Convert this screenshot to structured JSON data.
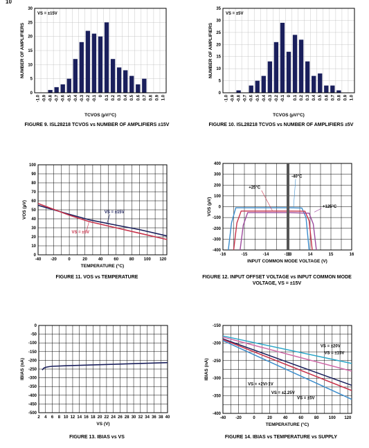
{
  "page_number": "10",
  "captions": {
    "fig9": "FIGURE 9. ISL28218 TCVOS vs NUMBER OF AMPLIFIERS ±15V",
    "fig10": "FIGURE 10. ISL28218 TCVOS vs NUMBER OF AMPLIFIERS ±5V",
    "fig11": "FIGURE 11. VOS vs TEMPERATURE",
    "fig12_line1": "FIGURE 12. INPUT OFFSET VOLTAGE vs INPUT COMMON MODE",
    "fig12_line2": "VOLTAGE, VS = ±15V",
    "fig13": "FIGURE 13. IBIAS vs VS",
    "fig14": "FIGURE 14. IBIAS vs TEMPERATURE vs SUPPLY"
  },
  "colors": {
    "navy": "#1a1f5c",
    "red": "#c8324a",
    "blue": "#3a8ccc",
    "purple": "#9c4a9c",
    "cyan": "#2aa6c9",
    "pink": "#d06aa8",
    "black": "#000000"
  },
  "chart_data": [
    {
      "id": "fig9",
      "type": "bar",
      "annotation": "VS = ±15V",
      "xlabel": "TCVOS (µV/°C)",
      "ylabel": "NUMBER OF AMPLIFIERS",
      "ylim": [
        0,
        30
      ],
      "yticks": [
        0,
        5,
        10,
        15,
        20,
        25,
        30
      ],
      "categories": [
        "-1.0",
        "-0.9",
        "-0.8",
        "-0.7",
        "-0.6",
        "-0.5",
        "-0.4",
        "-0.3",
        "-0.2",
        "-0.1",
        "0",
        "0.1",
        "0.2",
        "0.3",
        "0.4",
        "0.5",
        "0.6",
        "0.7",
        "0.8",
        "0.9",
        "1.0"
      ],
      "values": [
        0,
        0,
        1,
        2,
        3,
        5,
        12,
        18,
        22,
        21,
        20,
        25,
        12,
        9,
        8,
        6,
        3,
        5,
        0,
        0,
        0
      ]
    },
    {
      "id": "fig10",
      "type": "bar",
      "annotation": "VS = ±5V",
      "xlabel": "TCVOS (µV/°C)",
      "ylabel": "NUMBER OF AMPLIFIERS",
      "ylim": [
        0,
        35
      ],
      "yticks": [
        0,
        5,
        10,
        15,
        20,
        25,
        30,
        35
      ],
      "categories": [
        "-1.0",
        "-0.9",
        "-0.8",
        "-0.7",
        "-0.6",
        "-0.5",
        "-0.4",
        "-0.3",
        "-0.2",
        "-0.1",
        "0",
        "0.1",
        "0.2",
        "0.3",
        "0.4",
        "0.5",
        "0.6",
        "0.7",
        "0.8",
        "0.9",
        "1.0"
      ],
      "values": [
        0,
        0,
        1,
        0,
        3,
        5,
        7,
        13,
        21,
        29,
        17,
        24,
        22,
        13,
        7,
        8,
        3,
        3,
        1,
        0,
        0
      ]
    },
    {
      "id": "fig11",
      "type": "line",
      "xlabel": "TEMPERATURE (°C)",
      "ylabel": "VOS (µV)",
      "xlim": [
        -40,
        125
      ],
      "ylim": [
        0,
        100
      ],
      "xticks": [
        -40,
        -20,
        0,
        20,
        40,
        60,
        80,
        100,
        120
      ],
      "yticks": [
        0,
        10,
        20,
        30,
        40,
        50,
        60,
        70,
        80,
        90,
        100
      ],
      "series": [
        {
          "name": "VS = ±15V",
          "color": "navy",
          "x": [
            -40,
            0,
            25,
            60,
            90,
            125
          ],
          "y": [
            55,
            45,
            39,
            33,
            28,
            21
          ]
        },
        {
          "name": "VS = ±5V",
          "color": "red",
          "x": [
            -40,
            0,
            25,
            60,
            90,
            125
          ],
          "y": [
            57,
            44,
            37,
            30,
            24,
            17
          ]
        }
      ]
    },
    {
      "id": "fig12",
      "type": "line",
      "xlabel": "INPUT COMMON MODE VOLTAGE (V)",
      "ylabel": "VOS (µV)",
      "xlim": [
        -16,
        16
      ],
      "ylim": [
        -400,
        400
      ],
      "xticks": [
        -16,
        -15,
        -14,
        -13,
        13,
        14,
        15,
        16
      ],
      "yticks": [
        -400,
        -300,
        -200,
        -100,
        0,
        100,
        200,
        300,
        400
      ],
      "axis_break": true,
      "series": [
        {
          "name": "-40°C",
          "color": "blue",
          "x": [
            -15.75,
            -15.6,
            -15.4,
            -13,
            13,
            13.6,
            13.8,
            13.95
          ],
          "y": [
            -400,
            -150,
            -10,
            -10,
            -10,
            -12,
            -100,
            -400
          ]
        },
        {
          "name": "+25°C",
          "color": "red",
          "x": [
            -15.5,
            -15.35,
            -15.15,
            -13,
            13,
            13.75,
            13.95,
            14.1
          ],
          "y": [
            -400,
            -150,
            -40,
            -40,
            -40,
            -42,
            -130,
            -400
          ]
        },
        {
          "name": "+125°C",
          "color": "purple",
          "x": [
            -15.2,
            -15.05,
            -14.85,
            -13,
            13,
            13.95,
            14.15,
            14.3
          ],
          "y": [
            -400,
            -170,
            -55,
            -55,
            -55,
            -60,
            -160,
            -400
          ]
        }
      ],
      "labels": [
        "-40°C",
        "+25°C",
        "+125°C"
      ]
    },
    {
      "id": "fig13",
      "type": "line",
      "xlabel": "VS (V)",
      "ylabel": "IBIAS (nA)",
      "xlim": [
        2,
        40
      ],
      "ylim": [
        -500,
        0
      ],
      "xticks": [
        2,
        4,
        6,
        8,
        10,
        12,
        14,
        16,
        18,
        20,
        22,
        24,
        26,
        28,
        30,
        32,
        34,
        36,
        38,
        40
      ],
      "yticks": [
        0,
        -50,
        -100,
        -150,
        -200,
        -250,
        -300,
        -350,
        -400,
        -450,
        -500
      ],
      "series": [
        {
          "name": "IBIAS",
          "color": "navy",
          "x": [
            3,
            3.5,
            4,
            5,
            6,
            10,
            20,
            30,
            40
          ],
          "y": [
            -255,
            -245,
            -240,
            -236,
            -234,
            -231,
            -225,
            -219,
            -213
          ]
        }
      ]
    },
    {
      "id": "fig14",
      "type": "line",
      "xlabel": "TEMPERATURE (°C)",
      "ylabel": "IBIAS (nA)",
      "xlim": [
        -40,
        125
      ],
      "ylim": [
        -400,
        -150
      ],
      "xticks": [
        -40,
        -20,
        0,
        20,
        40,
        60,
        80,
        100,
        120
      ],
      "yticks": [
        -150,
        -200,
        -250,
        -300,
        -350,
        -400
      ],
      "series": [
        {
          "name": "VS = ±20V",
          "color": "cyan",
          "x": [
            -40,
            125
          ],
          "y": [
            -180,
            -258
          ]
        },
        {
          "name": "VS = ±15V",
          "color": "pink",
          "x": [
            -40,
            125
          ],
          "y": [
            -183,
            -280
          ]
        },
        {
          "name": "VS = ±5V",
          "color": "navy",
          "x": [
            -40,
            125
          ],
          "y": [
            -188,
            -320
          ]
        },
        {
          "name": "VS = ±2.25V",
          "color": "red",
          "x": [
            -40,
            125
          ],
          "y": [
            -190,
            -335
          ]
        },
        {
          "name": "VS = +2V/-1V",
          "color": "blue",
          "x": [
            -40,
            125
          ],
          "y": [
            -193,
            -360
          ]
        }
      ],
      "labels": [
        "VS = ±20V",
        "VS = ±15V",
        "VS = +2V/-1V",
        "VS = ±2.25V",
        "VS = ±5V"
      ]
    }
  ]
}
